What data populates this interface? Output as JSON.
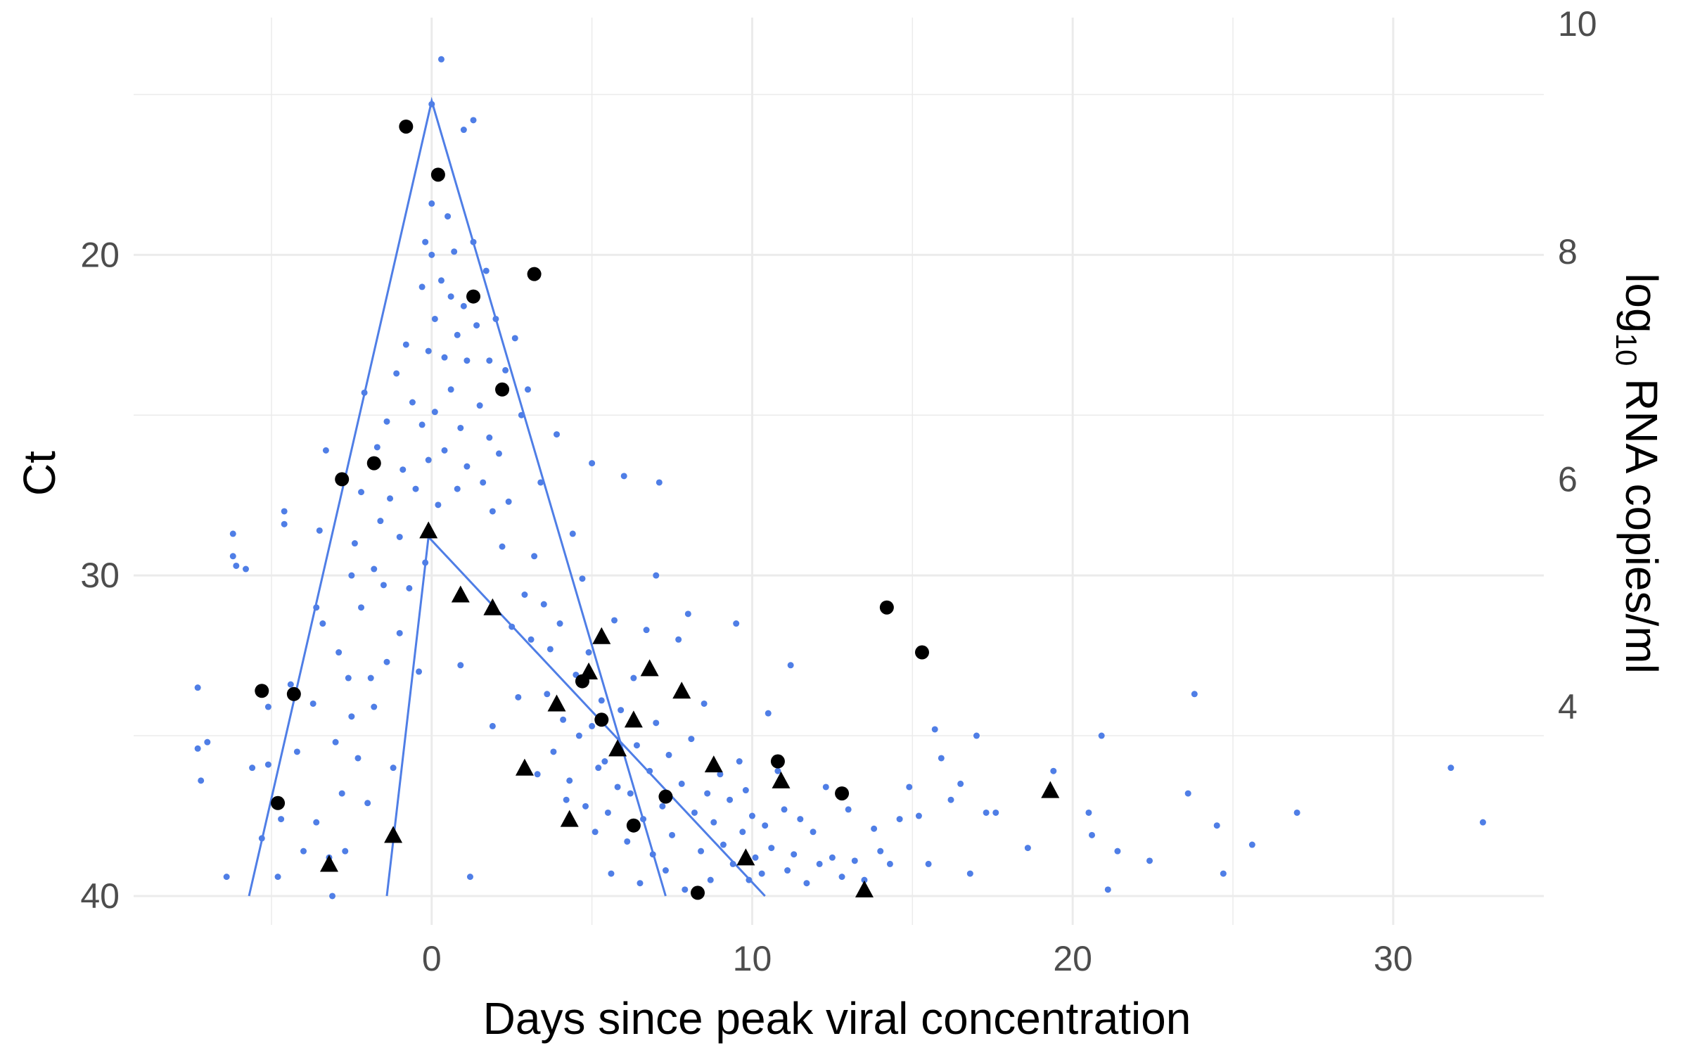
{
  "chart_data": {
    "type": "scatter",
    "xlabel": "Days since peak viral concentration",
    "ylabel": "Ct",
    "y2label_main": "log",
    "y2label_sub": "10",
    "y2label_rest": " RNA copies/ml",
    "xlim": [
      -9.3,
      34.7
    ],
    "ylim": [
      40.9,
      12.6
    ],
    "y_reversed": true,
    "grid": true,
    "x_ticks": [
      0,
      10,
      20,
      30
    ],
    "x_tick_labels": [
      "0",
      "10",
      "20",
      "30"
    ],
    "y_ticks": [
      20,
      30,
      40
    ],
    "y_tick_labels": [
      "20",
      "30",
      "40"
    ],
    "y2_ticks_ct": [
      12.8,
      19.9,
      27.0,
      34.1
    ],
    "y2_tick_labels": [
      "10",
      "8",
      "6",
      "4"
    ],
    "colors": {
      "points": "#4f7ee6",
      "lines": "#4f7ee6",
      "highlight": "#000000",
      "grid": "#ebebeb"
    },
    "series": [
      {
        "kind": "circle",
        "points": [
          [
            -5.3,
            33.6
          ],
          [
            -4.3,
            33.7
          ],
          [
            -4.8,
            37.1
          ],
          [
            -2.8,
            27.0
          ],
          [
            -1.8,
            26.5
          ],
          [
            -0.8,
            16.0
          ],
          [
            0.2,
            17.5
          ],
          [
            1.3,
            21.3
          ],
          [
            2.2,
            24.2
          ],
          [
            3.2,
            20.6
          ],
          [
            4.7,
            33.3
          ],
          [
            5.3,
            34.5
          ],
          [
            6.3,
            37.8
          ],
          [
            7.3,
            36.9
          ],
          [
            8.3,
            39.9
          ],
          [
            10.8,
            35.8
          ],
          [
            12.8,
            36.8
          ],
          [
            14.2,
            31.0
          ],
          [
            15.3,
            32.4
          ]
        ]
      },
      {
        "kind": "triangle",
        "points": [
          [
            -3.2,
            39.0
          ],
          [
            -1.2,
            38.1
          ],
          [
            -0.1,
            28.6
          ],
          [
            0.9,
            30.6
          ],
          [
            1.9,
            31.0
          ],
          [
            2.9,
            36.0
          ],
          [
            3.9,
            34.0
          ],
          [
            4.3,
            37.6
          ],
          [
            4.9,
            33.0
          ],
          [
            5.3,
            31.9
          ],
          [
            5.8,
            35.4
          ],
          [
            6.3,
            34.5
          ],
          [
            6.8,
            32.9
          ],
          [
            7.8,
            33.6
          ],
          [
            8.8,
            35.9
          ],
          [
            9.8,
            38.8
          ],
          [
            10.9,
            36.4
          ],
          [
            13.5,
            39.8
          ],
          [
            19.3,
            36.7
          ]
        ]
      },
      {
        "kind": "dots",
        "points": [
          [
            -7.3,
            33.5
          ],
          [
            -7.3,
            35.4
          ],
          [
            -7.2,
            36.4
          ],
          [
            -7.0,
            35.2
          ],
          [
            -6.4,
            39.4
          ],
          [
            -6.2,
            28.7
          ],
          [
            -6.2,
            29.4
          ],
          [
            -6.1,
            29.7
          ],
          [
            -5.8,
            29.8
          ],
          [
            -5.6,
            36.0
          ],
          [
            -5.3,
            38.2
          ],
          [
            -5.1,
            34.1
          ],
          [
            -5.1,
            35.9
          ],
          [
            -4.8,
            39.4
          ],
          [
            -4.7,
            37.6
          ],
          [
            -4.6,
            28.0
          ],
          [
            -4.6,
            28.4
          ],
          [
            -4.4,
            33.4
          ],
          [
            -4.2,
            35.5
          ],
          [
            -4.0,
            38.6
          ],
          [
            -3.7,
            34.0
          ],
          [
            -3.6,
            37.7
          ],
          [
            -3.6,
            31.0
          ],
          [
            -3.5,
            28.6
          ],
          [
            -3.4,
            31.5
          ],
          [
            -3.3,
            26.1
          ],
          [
            -3.2,
            38.8
          ],
          [
            -3.1,
            40.0
          ],
          [
            -3.0,
            35.2
          ],
          [
            -2.9,
            32.4
          ],
          [
            -2.8,
            36.8
          ],
          [
            -2.7,
            38.6
          ],
          [
            -2.6,
            33.2
          ],
          [
            -2.5,
            34.4
          ],
          [
            -2.5,
            30.0
          ],
          [
            -2.4,
            29.0
          ],
          [
            -2.3,
            35.7
          ],
          [
            -2.2,
            31.0
          ],
          [
            -2.2,
            27.4
          ],
          [
            -2.1,
            24.3
          ],
          [
            -2.0,
            37.1
          ],
          [
            -1.9,
            33.2
          ],
          [
            -1.8,
            34.1
          ],
          [
            -1.8,
            29.8
          ],
          [
            -1.7,
            26.0
          ],
          [
            -1.6,
            28.3
          ],
          [
            -1.5,
            30.3
          ],
          [
            -1.4,
            32.7
          ],
          [
            -1.4,
            25.2
          ],
          [
            -1.3,
            27.6
          ],
          [
            -1.2,
            36.0
          ],
          [
            -1.1,
            23.7
          ],
          [
            -1.0,
            31.8
          ],
          [
            -1.0,
            28.8
          ],
          [
            -0.9,
            26.7
          ],
          [
            -0.8,
            22.8
          ],
          [
            -0.7,
            30.4
          ],
          [
            -0.6,
            24.6
          ],
          [
            -0.5,
            27.3
          ],
          [
            -0.4,
            33.0
          ],
          [
            -0.3,
            21.0
          ],
          [
            -0.3,
            25.3
          ],
          [
            -0.2,
            29.6
          ],
          [
            -0.2,
            19.6
          ],
          [
            -0.1,
            23.0
          ],
          [
            -0.1,
            26.4
          ],
          [
            0.0,
            15.3
          ],
          [
            0.0,
            18.4
          ],
          [
            0.0,
            20.0
          ],
          [
            0.1,
            22.0
          ],
          [
            0.1,
            24.9
          ],
          [
            0.2,
            27.8
          ],
          [
            0.3,
            13.9
          ],
          [
            0.3,
            20.8
          ],
          [
            0.4,
            23.2
          ],
          [
            0.4,
            26.1
          ],
          [
            0.5,
            18.8
          ],
          [
            0.6,
            21.3
          ],
          [
            0.6,
            24.2
          ],
          [
            0.7,
            19.9
          ],
          [
            0.8,
            22.5
          ],
          [
            0.8,
            27.3
          ],
          [
            0.9,
            25.4
          ],
          [
            0.9,
            32.8
          ],
          [
            1.0,
            16.1
          ],
          [
            1.0,
            21.6
          ],
          [
            1.1,
            23.3
          ],
          [
            1.1,
            26.6
          ],
          [
            1.2,
            39.4
          ],
          [
            1.3,
            15.8
          ],
          [
            1.3,
            19.6
          ],
          [
            1.4,
            22.2
          ],
          [
            1.5,
            24.7
          ],
          [
            1.6,
            27.1
          ],
          [
            1.7,
            20.5
          ],
          [
            1.8,
            23.3
          ],
          [
            1.8,
            25.7
          ],
          [
            1.9,
            28.0
          ],
          [
            1.9,
            34.7
          ],
          [
            2.0,
            22.0
          ],
          [
            2.1,
            26.2
          ],
          [
            2.2,
            29.1
          ],
          [
            2.3,
            23.6
          ],
          [
            2.4,
            27.7
          ],
          [
            2.5,
            31.6
          ],
          [
            2.6,
            22.6
          ],
          [
            2.7,
            33.8
          ],
          [
            2.8,
            25.0
          ],
          [
            2.9,
            30.6
          ],
          [
            3.0,
            24.2
          ],
          [
            3.1,
            32.0
          ],
          [
            3.2,
            29.4
          ],
          [
            3.3,
            36.2
          ],
          [
            3.4,
            27.1
          ],
          [
            3.5,
            30.9
          ],
          [
            3.6,
            33.7
          ],
          [
            3.7,
            32.3
          ],
          [
            3.8,
            35.5
          ],
          [
            3.9,
            25.6
          ],
          [
            4.0,
            31.5
          ],
          [
            4.1,
            34.5
          ],
          [
            4.2,
            37.0
          ],
          [
            4.3,
            36.4
          ],
          [
            4.4,
            28.7
          ],
          [
            4.5,
            33.1
          ],
          [
            4.6,
            35.0
          ],
          [
            4.7,
            30.1
          ],
          [
            4.8,
            37.2
          ],
          [
            4.9,
            32.4
          ],
          [
            5.0,
            26.5
          ],
          [
            5.0,
            34.7
          ],
          [
            5.1,
            38.0
          ],
          [
            5.2,
            36.0
          ],
          [
            5.3,
            33.9
          ],
          [
            5.4,
            35.8
          ],
          [
            5.5,
            37.4
          ],
          [
            5.6,
            39.3
          ],
          [
            5.7,
            31.4
          ],
          [
            5.8,
            36.6
          ],
          [
            5.9,
            34.2
          ],
          [
            6.0,
            26.9
          ],
          [
            6.1,
            38.3
          ],
          [
            6.2,
            36.8
          ],
          [
            6.3,
            33.2
          ],
          [
            6.4,
            35.3
          ],
          [
            6.5,
            39.6
          ],
          [
            6.6,
            37.6
          ],
          [
            6.7,
            31.7
          ],
          [
            6.8,
            36.1
          ],
          [
            6.9,
            38.7
          ],
          [
            7.0,
            30.0
          ],
          [
            7.0,
            34.6
          ],
          [
            7.1,
            27.1
          ],
          [
            7.2,
            37.2
          ],
          [
            7.3,
            39.2
          ],
          [
            7.4,
            35.6
          ],
          [
            7.5,
            38.1
          ],
          [
            7.7,
            32.0
          ],
          [
            7.8,
            36.5
          ],
          [
            7.9,
            39.8
          ],
          [
            8.0,
            31.2
          ],
          [
            8.1,
            35.1
          ],
          [
            8.2,
            37.4
          ],
          [
            8.4,
            38.6
          ],
          [
            8.5,
            34.0
          ],
          [
            8.6,
            36.8
          ],
          [
            8.7,
            39.5
          ],
          [
            8.8,
            37.7
          ],
          [
            9.0,
            36.2
          ],
          [
            9.1,
            38.4
          ],
          [
            9.3,
            37.0
          ],
          [
            9.4,
            39.0
          ],
          [
            9.5,
            31.5
          ],
          [
            9.6,
            35.8
          ],
          [
            9.7,
            38.0
          ],
          [
            9.8,
            36.7
          ],
          [
            9.9,
            39.5
          ],
          [
            10.0,
            37.5
          ],
          [
            10.1,
            38.8
          ],
          [
            10.3,
            39.3
          ],
          [
            10.4,
            37.8
          ],
          [
            10.5,
            34.3
          ],
          [
            10.6,
            38.5
          ],
          [
            10.8,
            36.1
          ],
          [
            11.0,
            37.3
          ],
          [
            11.1,
            39.2
          ],
          [
            11.2,
            32.8
          ],
          [
            11.3,
            38.7
          ],
          [
            11.5,
            37.6
          ],
          [
            11.7,
            39.6
          ],
          [
            11.9,
            38.0
          ],
          [
            12.1,
            39.0
          ],
          [
            12.3,
            36.6
          ],
          [
            12.5,
            38.8
          ],
          [
            12.8,
            39.4
          ],
          [
            13.0,
            37.3
          ],
          [
            13.2,
            38.9
          ],
          [
            13.5,
            39.5
          ],
          [
            13.8,
            37.9
          ],
          [
            14.0,
            38.6
          ],
          [
            14.3,
            39.0
          ],
          [
            14.6,
            37.6
          ],
          [
            14.9,
            36.6
          ],
          [
            15.2,
            37.5
          ],
          [
            15.5,
            39.0
          ],
          [
            15.7,
            34.8
          ],
          [
            15.9,
            35.7
          ],
          [
            16.2,
            37.0
          ],
          [
            16.5,
            36.5
          ],
          [
            16.8,
            39.3
          ],
          [
            17.0,
            35.0
          ],
          [
            17.3,
            37.4
          ],
          [
            17.6,
            37.4
          ],
          [
            18.6,
            38.5
          ],
          [
            19.4,
            36.1
          ],
          [
            20.5,
            37.4
          ],
          [
            20.6,
            38.1
          ],
          [
            20.9,
            35.0
          ],
          [
            21.1,
            39.8
          ],
          [
            21.4,
            38.6
          ],
          [
            22.4,
            38.9
          ],
          [
            23.6,
            36.8
          ],
          [
            23.8,
            33.7
          ],
          [
            24.5,
            37.8
          ],
          [
            24.7,
            39.3
          ],
          [
            25.6,
            38.4
          ],
          [
            27.0,
            37.4
          ],
          [
            31.8,
            36.0
          ],
          [
            32.8,
            37.7
          ]
        ]
      }
    ],
    "lines": [
      {
        "name": "",
        "points": [
          [
            -5.7,
            40.0
          ],
          [
            0.0,
            15.2
          ],
          [
            7.3,
            40.0
          ]
        ]
      },
      {
        "name": "",
        "points": [
          [
            -1.4,
            40.0
          ],
          [
            -0.1,
            28.8
          ],
          [
            10.4,
            40.0
          ]
        ]
      }
    ]
  }
}
